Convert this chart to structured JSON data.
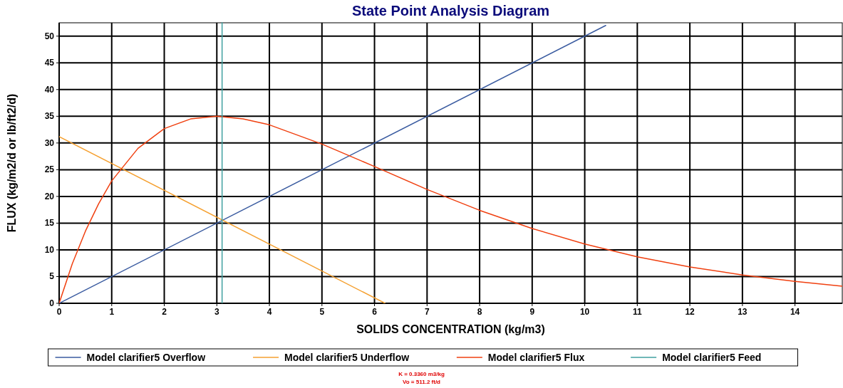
{
  "chart_data": {
    "type": "line",
    "title": "State Point Analysis Diagram",
    "xlabel": "SOLIDS CONCENTRATION (kg/m3)",
    "ylabel": "FLUX (kg/m2/d or lb/ft2/d)",
    "xlim": [
      0,
      14.9
    ],
    "ylim": [
      0,
      52.5
    ],
    "xticks": [
      0,
      1,
      2,
      3,
      4,
      5,
      6,
      7,
      8,
      9,
      10,
      11,
      12,
      13,
      14
    ],
    "yticks": [
      0,
      5,
      10,
      15,
      20,
      25,
      30,
      35,
      40,
      45,
      50
    ],
    "grid": true,
    "legend": "bottom",
    "marker": "none",
    "line_style": "solid",
    "series": [
      {
        "name": "Model clarifier5 Overflow",
        "color": "#3a5ba0",
        "x": [
          0,
          10.4
        ],
        "values": [
          0,
          52
        ]
      },
      {
        "name": "Model clarifier5 Underflow",
        "color": "#f5a030",
        "x": [
          0,
          6.2
        ],
        "values": [
          31.2,
          0
        ]
      },
      {
        "name": "Model clarifier5 Flux",
        "color": "#f04010",
        "x": [
          0,
          0.25,
          0.5,
          0.75,
          1,
          1.5,
          2,
          2.5,
          3,
          3.5,
          4,
          5,
          6,
          7,
          8,
          9,
          10,
          11,
          12,
          13,
          14,
          14.9
        ],
        "values": [
          0,
          7.4,
          13.5,
          18.6,
          22.9,
          29,
          32.7,
          34.5,
          35,
          34.5,
          33.4,
          29.8,
          25.6,
          21.3,
          17.4,
          14,
          11.1,
          8.7,
          6.8,
          5.3,
          4.1,
          3.2
        ]
      },
      {
        "name": "Model clarifier5 Feed",
        "color": "#40a0a0",
        "x": [
          3.1,
          3.1
        ],
        "values": [
          0,
          52.5
        ]
      }
    ],
    "annotations": [
      "K  = 0.3360 m3/kg",
      "Vo = 511.2 ft/d"
    ]
  }
}
